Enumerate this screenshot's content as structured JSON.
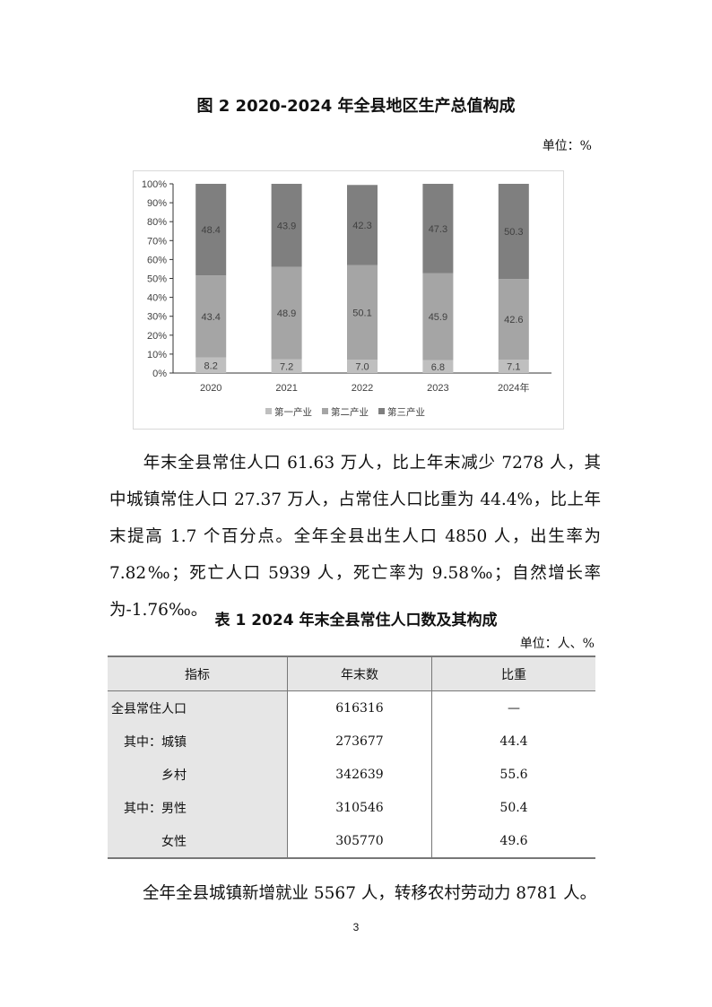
{
  "figure": {
    "title": "图 2  2020-2024 年全县地区生产总值构成",
    "unit": "单位：%"
  },
  "chart_data": {
    "type": "bar",
    "stacked": true,
    "categories": [
      "2020",
      "2021",
      "2022",
      "2023",
      "2024年"
    ],
    "series": [
      {
        "name": "第一产业",
        "values": [
          8.2,
          7.2,
          7.0,
          6.8,
          7.1
        ],
        "color": "#bfbfbf"
      },
      {
        "name": "第二产业",
        "values": [
          43.4,
          48.9,
          50.1,
          45.9,
          42.6
        ],
        "color": "#a5a5a5"
      },
      {
        "name": "第三产业",
        "values": [
          48.4,
          43.9,
          42.3,
          47.3,
          50.3
        ],
        "color": "#7f7f7f"
      }
    ],
    "yticks": [
      "0%",
      "10%",
      "20%",
      "30%",
      "40%",
      "50%",
      "60%",
      "70%",
      "80%",
      "90%",
      "100%"
    ],
    "ylim": [
      0,
      100
    ],
    "legend": "bottom",
    "grid": false
  },
  "paragraph1": "年末全县常住人口 61.63 万人，比上年末减少 7278 人，其中城镇常住人口 27.37 万人，占常住人口比重为 44.4%，比上年末提高 1.7 个百分点。全年全县出生人口 4850 人，出生率为 7.82‰；死亡人口 5939 人，死亡率为 9.58‰；自然增长率为-1.76‰。",
  "table": {
    "title": "表 1  2024 年末全县常住人口数及其构成",
    "unit": "单位：人、%",
    "headers": [
      "指标",
      "年末数",
      "比重"
    ],
    "rows": [
      [
        "全县常住人口",
        "616316",
        "—"
      ],
      [
        "　其中：城镇",
        "273677",
        "44.4"
      ],
      [
        "　　　　乡村",
        "342639",
        "55.6"
      ],
      [
        "　其中：男性",
        "310546",
        "50.4"
      ],
      [
        "　　　　女性",
        "305770",
        "49.6"
      ]
    ]
  },
  "paragraph2": "全年全县城镇新增就业 5567 人，转移农村劳动力 8781 人。",
  "page_number": "3"
}
